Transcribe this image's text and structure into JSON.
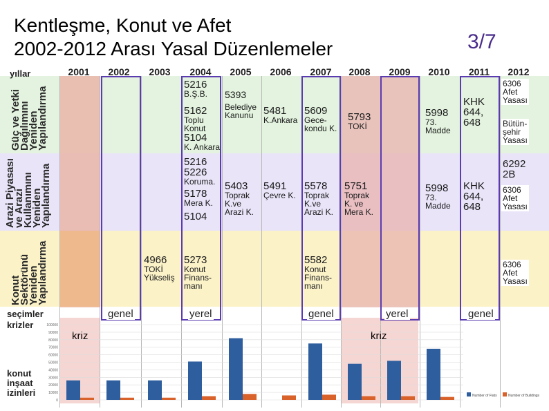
{
  "slide": {
    "title_line1": "Kentleşme, Konut ve Afet",
    "title_line2": "2002-2012 Arası Yasal Düzenlemeler",
    "page_number": "3/7"
  },
  "table": {
    "corner_label": "yıllar",
    "years": [
      "2001",
      "2002",
      "2003",
      "2004",
      "2005",
      "2006",
      "2007",
      "2008",
      "2009",
      "2010",
      "2011",
      "2012"
    ],
    "row_labels": {
      "row1": [
        "Güç ve Yetki",
        "Dağılımını",
        "Yeniden",
        "Yapılandırma"
      ],
      "row2": [
        "Arazi Piyasası",
        "ve Arazi",
        "Kullanımını",
        "Yeniden",
        "Yapılandırma"
      ],
      "row3": [
        "Konut",
        "Sektörünü",
        "Yeniden",
        "Yapılandırma"
      ]
    },
    "row1_cells": {
      "c2004a": "5216",
      "c2004b": "B.Ş.B.",
      "c2004c": "5162",
      "c2004d": "Toplu",
      "c2004e": "Konut",
      "c2004f": "5104",
      "c2004g": "K. Ankara",
      "c2005a": "5393",
      "c2005b": "Belediye",
      "c2005c": "Kanunu",
      "c2006a": "5481",
      "c2006b": "K.Ankara",
      "c2007a": "5609",
      "c2007b": "Gece-",
      "c2007c": "kondu K.",
      "c2008a": "5793",
      "c2008b": "TOKİ",
      "c2010a": "5998",
      "c2010b": "73.",
      "c2010c": "Madde",
      "c2011a": "KHK",
      "c2011b": "644,",
      "c2011c": "648",
      "c2012a": "6306",
      "c2012b": "Afet",
      "c2012c": "Yasası",
      "c2012d": "Bütün-",
      "c2012e": "şehir",
      "c2012f": "Yasası"
    },
    "row2_cells": {
      "c2004a": "5216",
      "c2004b": "5226",
      "c2004c": "Koruma.",
      "c2004d": "5178",
      "c2004e": "Mera K.",
      "c2004f": "5104",
      "c2005a": "5403",
      "c2005b": "Toprak",
      "c2005c": "K.ve",
      "c2005d": "Arazi K.",
      "c2006a": "5491",
      "c2006b": "Çevre K.",
      "c2007a": "5578",
      "c2007b": "Toprak",
      "c2007c": "K.ve",
      "c2007d": "Arazi K.",
      "c2008a": "5751",
      "c2008b": "Toprak",
      "c2008c": "K. ve",
      "c2008d": "Mera K.",
      "c2010a": "5998",
      "c2010b": "73.",
      "c2010c": "Madde",
      "c2011a": "KHK",
      "c2011b": "644,",
      "c2011c": "648",
      "c2012a": "6292",
      "c2012b": "2B",
      "c2012c": "6306",
      "c2012d": "Afet",
      "c2012e": "Yasası"
    },
    "row3_cells": {
      "c2003a": "4966",
      "c2003b": "TOKİ",
      "c2003c": "Yükseliş",
      "c2004a": "5273",
      "c2004b": "Konut",
      "c2004c": "Finans-",
      "c2004d": "manı",
      "c2007a": "5582",
      "c2007b": "Konut",
      "c2007c": "Finans-",
      "c2007d": "manı",
      "c2012a": "6306",
      "c2012b": "Afet",
      "c2012c": "Yasası"
    },
    "elections_label": "seçimler",
    "elections": {
      "e2002": "genel",
      "e2004": "yerel",
      "e2007": "genel",
      "e2009": "yerel",
      "e2011": "genel"
    },
    "crises_label": "krizler",
    "crisis_2001": "kriz",
    "crisis_2008": "kriz",
    "permits_label": [
      "konut",
      "inşaat",
      "izinleri"
    ]
  },
  "colors": {
    "row1_band": "#e3f3df",
    "row2_band": "#e9e4f8",
    "row3_band": "#fbf2c8",
    "crisis_column": "#eab7b3",
    "crisis_column_2004_row1": "#e9d8a6",
    "frame": "#5b3bb0",
    "bar_permits": "#2e5e9e",
    "bar_buildings": "#d9622b"
  },
  "chart_data": {
    "type": "bar",
    "categories": [
      "2001",
      "2002",
      "2003",
      "2004",
      "2005",
      "2006",
      "2007",
      "2008",
      "2009",
      "2010",
      "2011",
      "2012"
    ],
    "ylim": [
      0,
      100000
    ],
    "yticks": [
      "100000",
      "90000",
      "80000",
      "70000",
      "60000",
      "50000",
      "40000",
      "30000",
      "20000",
      "10000",
      "0"
    ],
    "series": [
      {
        "name": "Number of Flats",
        "values": [
          26000,
          26000,
          26000,
          51000,
          82000,
          null,
          75000,
          48000,
          52000,
          68000,
          null,
          null
        ]
      },
      {
        "name": "Number of Buildings",
        "values": [
          3000,
          3000,
          3000,
          5000,
          8000,
          6000,
          7000,
          5000,
          5000,
          4000,
          null,
          null
        ]
      }
    ]
  }
}
